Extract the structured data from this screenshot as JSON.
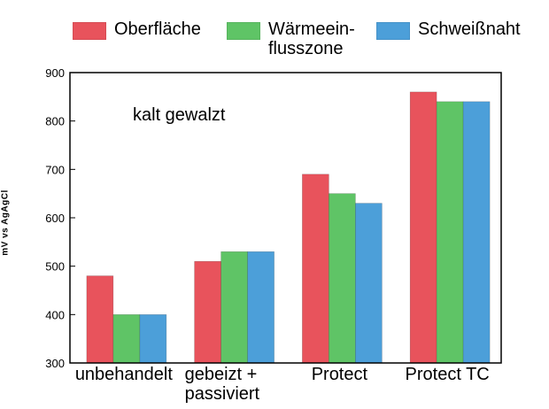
{
  "chart_data": {
    "type": "bar",
    "categories": [
      "unbehandelt",
      "gebeizt +\npassiviert",
      "Protect",
      "Protect TC"
    ],
    "series": [
      {
        "name": "Oberfläche",
        "color": "#e8535c",
        "values": [
          480,
          510,
          690,
          860
        ]
      },
      {
        "name": "Wärmeein-\nflusszone",
        "color": "#5fc466",
        "values": [
          400,
          530,
          650,
          840
        ]
      },
      {
        "name": "Schweißnaht",
        "color": "#4c9fd9",
        "values": [
          400,
          530,
          630,
          840
        ]
      }
    ],
    "title": "",
    "xlabel": "",
    "ylabel": "mV vs AgAgCl",
    "annotation": "kalt gewalzt",
    "ylim": [
      300,
      900
    ],
    "yticks": [
      "300",
      "400",
      "500",
      "600",
      "700",
      "800",
      "900"
    ],
    "grid": false,
    "legend_position": "top"
  }
}
